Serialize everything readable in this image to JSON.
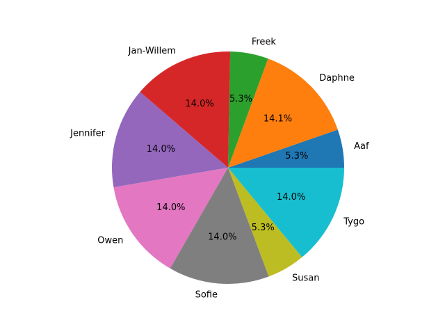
{
  "chart_data": {
    "type": "pie",
    "title": "",
    "start_angle_deg": 0,
    "direction": "counterclockwise",
    "categories": [
      "Aaf",
      "Daphne",
      "Freek",
      "Jan-Willem",
      "Jennifer",
      "Owen",
      "Sofie",
      "Susan",
      "Tygo"
    ],
    "values": [
      5.3,
      14.1,
      5.3,
      14.0,
      14.0,
      14.0,
      14.0,
      5.3,
      14.0
    ],
    "value_labels": [
      "5.3%",
      "14.1%",
      "5.3%",
      "14.0%",
      "14.0%",
      "14.0%",
      "14.0%",
      "5.3%",
      "14.0%"
    ],
    "colors": [
      "#1f77b4",
      "#ff7f0e",
      "#2ca02c",
      "#d62728",
      "#9467bd",
      "#e377c2",
      "#7f7f7f",
      "#bcbd22",
      "#17becf"
    ],
    "legend": "none"
  }
}
